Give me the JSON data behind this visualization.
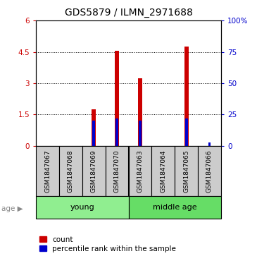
{
  "title": "GDS5879 / ILMN_2971688",
  "samples": [
    "GSM1847067",
    "GSM1847068",
    "GSM1847069",
    "GSM1847070",
    "GSM1847063",
    "GSM1847064",
    "GSM1847065",
    "GSM1847066"
  ],
  "count_values": [
    0.0,
    0.0,
    1.75,
    4.55,
    3.25,
    0.0,
    4.75,
    0.0
  ],
  "percentile_values": [
    0.0,
    0.0,
    20.0,
    22.0,
    20.0,
    0.0,
    22.0,
    3.0
  ],
  "ylim_left": [
    0,
    6
  ],
  "ylim_right": [
    0,
    100
  ],
  "yticks_left": [
    0,
    1.5,
    3.0,
    4.5,
    6.0
  ],
  "yticks_right": [
    0,
    25,
    50,
    75,
    100
  ],
  "yticklabels_left": [
    "0",
    "1.5",
    "3",
    "4.5",
    "6"
  ],
  "yticklabels_right": [
    "0",
    "25",
    "50",
    "75",
    "100%"
  ],
  "bar_color": "#cc0000",
  "percentile_color": "#0000cc",
  "bar_width": 0.18,
  "percentile_bar_width": 0.12,
  "group_young_indices": [
    0,
    1,
    2,
    3
  ],
  "group_middle_indices": [
    4,
    5,
    6,
    7
  ],
  "age_label": "age",
  "legend_count": "count",
  "legend_percentile": "percentile rank within the sample",
  "background_color": "#ffffff",
  "plot_bg_color": "#ffffff",
  "label_area_bg": "#cccccc",
  "group_young_color": "#90EE90",
  "group_middle_color": "#66DD66",
  "title_fontsize": 10,
  "tick_fontsize": 7.5,
  "label_fontsize": 6.5,
  "group_fontsize": 8,
  "legend_fontsize": 7.5
}
